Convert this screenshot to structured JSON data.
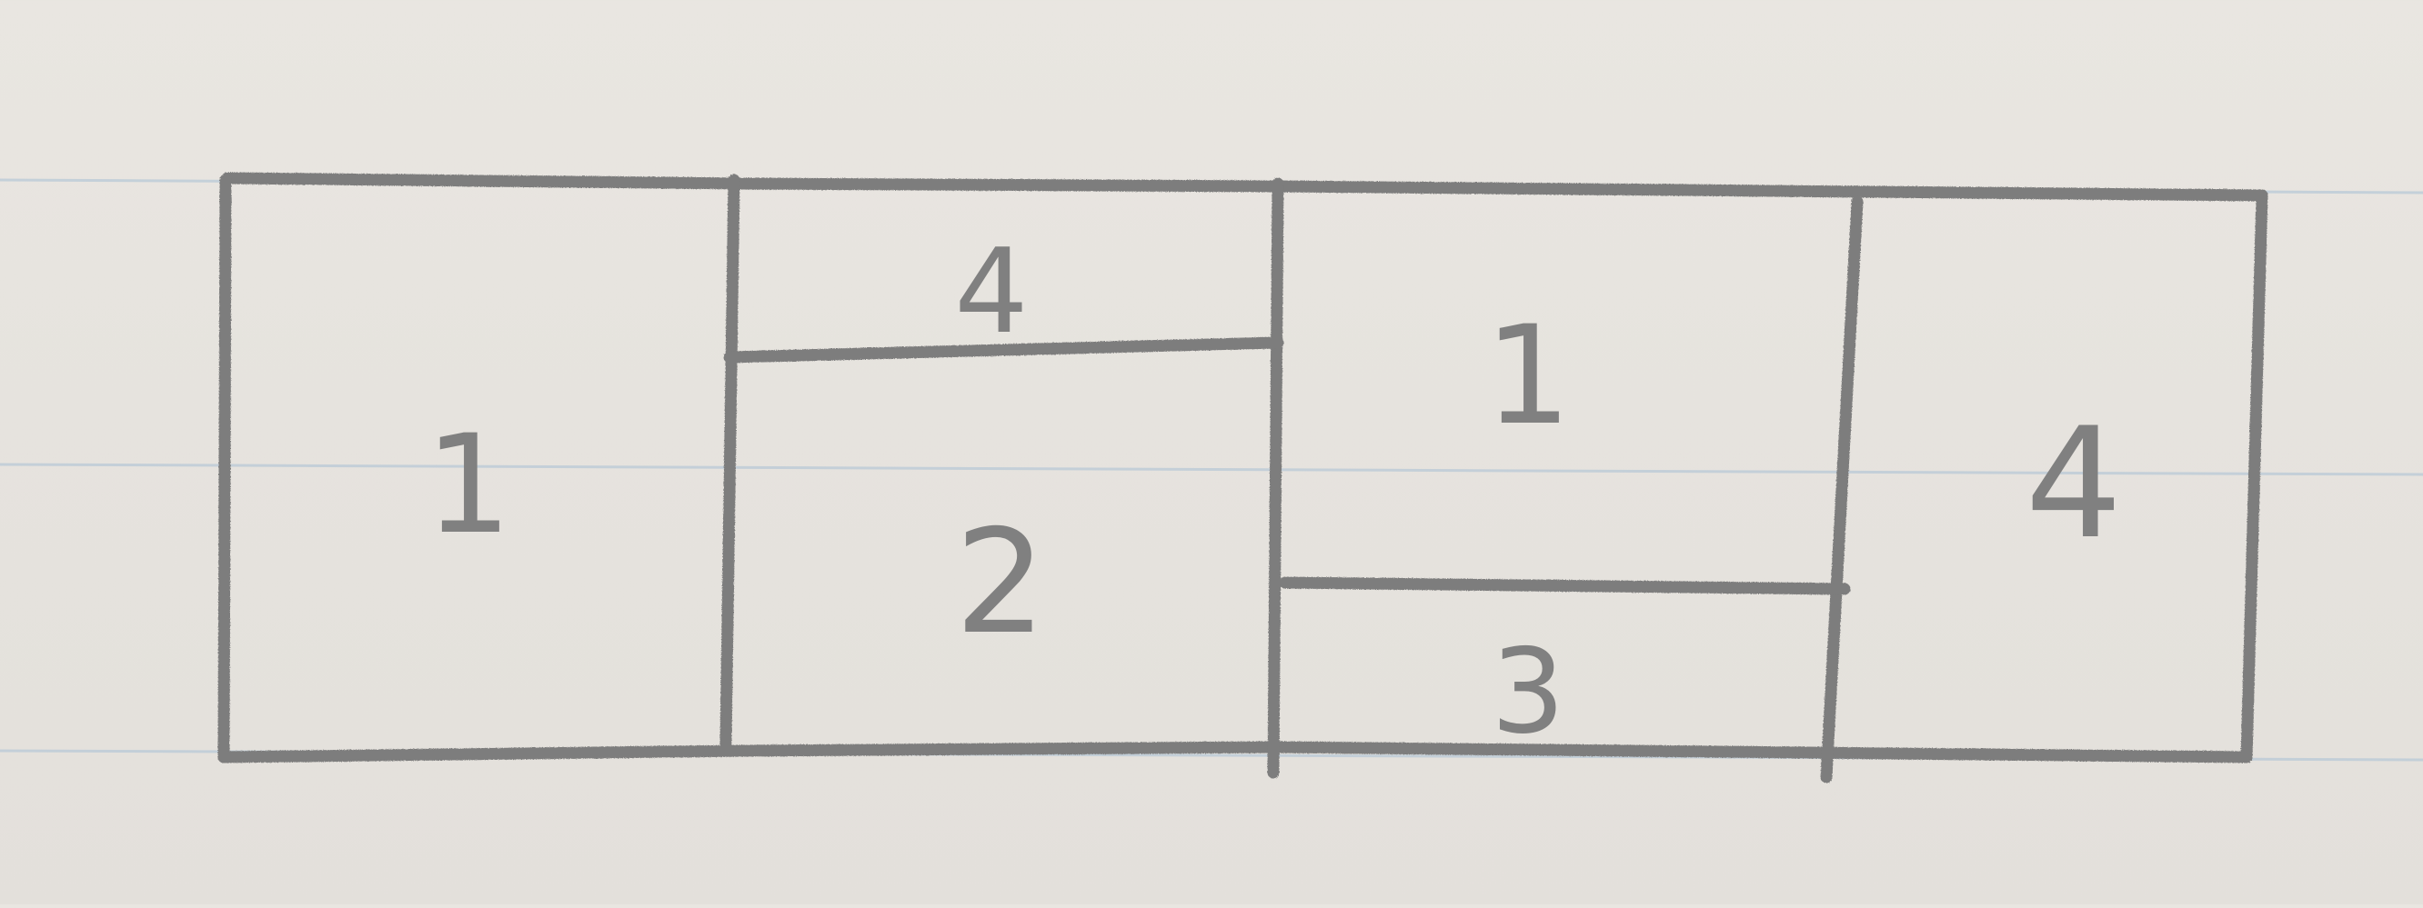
{
  "diagram": {
    "cells": {
      "col1": "1",
      "col2_top": "4",
      "col2_bottom": "2",
      "col3_top": "1",
      "col3_bottom": "3",
      "col4": "4"
    }
  },
  "colors": {
    "paper": "#e7e4df",
    "rule_line": "#b8c9d8",
    "pencil": "#7f7f7f"
  }
}
